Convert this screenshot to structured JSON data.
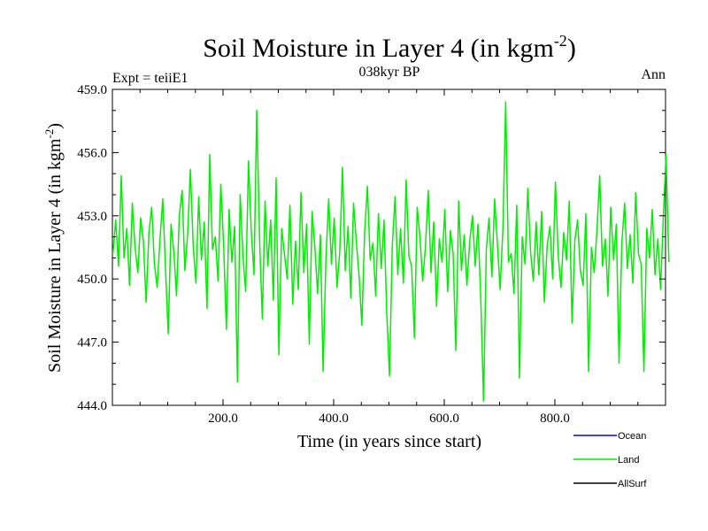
{
  "chart_data": {
    "type": "line",
    "title": "Soil Moisture in Layer 4 (in kgm",
    "title_sup": "-2",
    "title_close": ")",
    "subtitle": "038kyr BP",
    "left_label": "Expt = teiiE1",
    "right_label": "Ann",
    "xlabel": "Time (in years since start)",
    "ylabel": "Soil Moisture in Layer 4 (in kgm",
    "ylabel_sup": "-2",
    "ylabel_close": ")",
    "xlim": [
      0,
      1000
    ],
    "ylim": [
      444.0,
      459.0
    ],
    "x_ticks": [
      200,
      400,
      600,
      800
    ],
    "x_tick_labels": [
      "200.0",
      "400.0",
      "600.0",
      "800.0"
    ],
    "y_ticks": [
      444,
      447,
      450,
      453,
      456,
      459
    ],
    "y_tick_labels": [
      "444.0",
      "447.0",
      "450.0",
      "453.0",
      "456.0",
      "459.0"
    ],
    "grid": false,
    "legend_position": "bottom-right",
    "legend": [
      {
        "name": "Ocean",
        "color": "#0000ff"
      },
      {
        "name": "Land",
        "color": "#00ee00"
      },
      {
        "name": "AllSurf",
        "color": "#000000"
      }
    ],
    "series": [
      {
        "name": "Land",
        "color": "#00ee00",
        "x_start": 1,
        "x_step": 5,
        "values": [
          451.2,
          452.8,
          450.6,
          454.9,
          451.0,
          452.4,
          449.7,
          453.6,
          451.5,
          450.3,
          452.9,
          451.8,
          448.9,
          452.2,
          453.4,
          450.7,
          449.6,
          451.9,
          453.8,
          450.5,
          447.4,
          452.6,
          451.3,
          449.2,
          453.0,
          454.2,
          450.4,
          452.1,
          455.2,
          451.6,
          449.8,
          453.9,
          450.9,
          452.7,
          448.6,
          455.9,
          451.4,
          452.0,
          449.9,
          454.5,
          451.7,
          447.6,
          453.3,
          450.8,
          452.5,
          445.1,
          454.0,
          451.1,
          449.4,
          455.6,
          452.3,
          450.2,
          458.0,
          451.9,
          448.1,
          453.7,
          450.6,
          452.8,
          449.0,
          454.8,
          446.4,
          452.4,
          451.2,
          450.0,
          453.5,
          448.8,
          451.8,
          449.5,
          454.1,
          450.3,
          452.6,
          446.9,
          453.2,
          451.5,
          449.3,
          452.1,
          445.6,
          451.0,
          453.8,
          450.7,
          452.9,
          449.6,
          451.3,
          455.3,
          450.4,
          452.5,
          449.1,
          453.6,
          451.8,
          450.1,
          447.8,
          452.2,
          454.4,
          450.9,
          451.7,
          449.2,
          453.1,
          450.5,
          452.8,
          448.4,
          445.4,
          451.6,
          453.9,
          450.2,
          452.4,
          449.8,
          454.7,
          451.1,
          450.6,
          447.2,
          453.4,
          452.0,
          449.9,
          451.5,
          454.2,
          450.3,
          452.7,
          448.7,
          451.9,
          450.8,
          453.3,
          449.4,
          452.3,
          451.2,
          446.6,
          453.7,
          450.4,
          452.1,
          449.7,
          451.8,
          453.0,
          450.6,
          452.6,
          449.0,
          444.2,
          451.4,
          452.9,
          450.1,
          453.8,
          451.7,
          449.5,
          452.4,
          458.4,
          450.8,
          451.2,
          449.3,
          453.5,
          445.3,
          452.0,
          450.7,
          454.3,
          451.3,
          449.9,
          452.7,
          450.2,
          453.2,
          448.9,
          451.6,
          452.5,
          450.0,
          454.6,
          451.1,
          449.6,
          452.2,
          450.9,
          453.7,
          447.9,
          451.8,
          452.8,
          450.4,
          449.7,
          453.1,
          445.6,
          451.5,
          450.3,
          452.3,
          454.9,
          450.6,
          451.9,
          449.2,
          453.4,
          450.9,
          452.6,
          446.0,
          451.7,
          453.6,
          450.5,
          452.1,
          449.8,
          454.1,
          451.2,
          450.7,
          445.6,
          452.4,
          451.0,
          453.3,
          450.2,
          451.9,
          449.5,
          452.9,
          455.9,
          450.8
        ]
      }
    ]
  }
}
